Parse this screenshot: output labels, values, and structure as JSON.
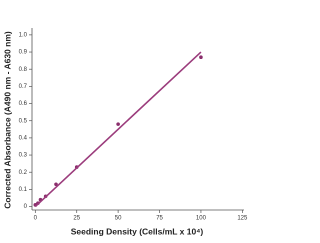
{
  "chart_data": {
    "type": "scatter",
    "x_label": "Seeding Density (Cells/mL x 10⁴)",
    "y_label": "Corrected Absorbance (A490 nm - A630 nm)",
    "xlim": [
      -2,
      126
    ],
    "ylim": [
      -0.02,
      1.04
    ],
    "xticks": [
      0,
      25,
      50,
      75,
      100,
      125
    ],
    "yticks": [
      0,
      0.1,
      0.2,
      0.3,
      0.4,
      0.5,
      0.6,
      0.7,
      0.8,
      0.9,
      {
        "value": 1,
        "label": "1.0"
      }
    ],
    "series": [
      {
        "type": "scatter",
        "color": "#8a2e6c",
        "x": [
          0,
          1.56,
          3.125,
          6.25,
          12.5,
          25,
          50,
          100
        ],
        "values": [
          0.01,
          0.02,
          0.04,
          0.06,
          0.13,
          0.23,
          0.48,
          0.87
        ]
      },
      {
        "type": "line",
        "color": "#9b3c7c",
        "x": [
          0,
          100
        ],
        "values": [
          0,
          0.9
        ]
      }
    ]
  }
}
